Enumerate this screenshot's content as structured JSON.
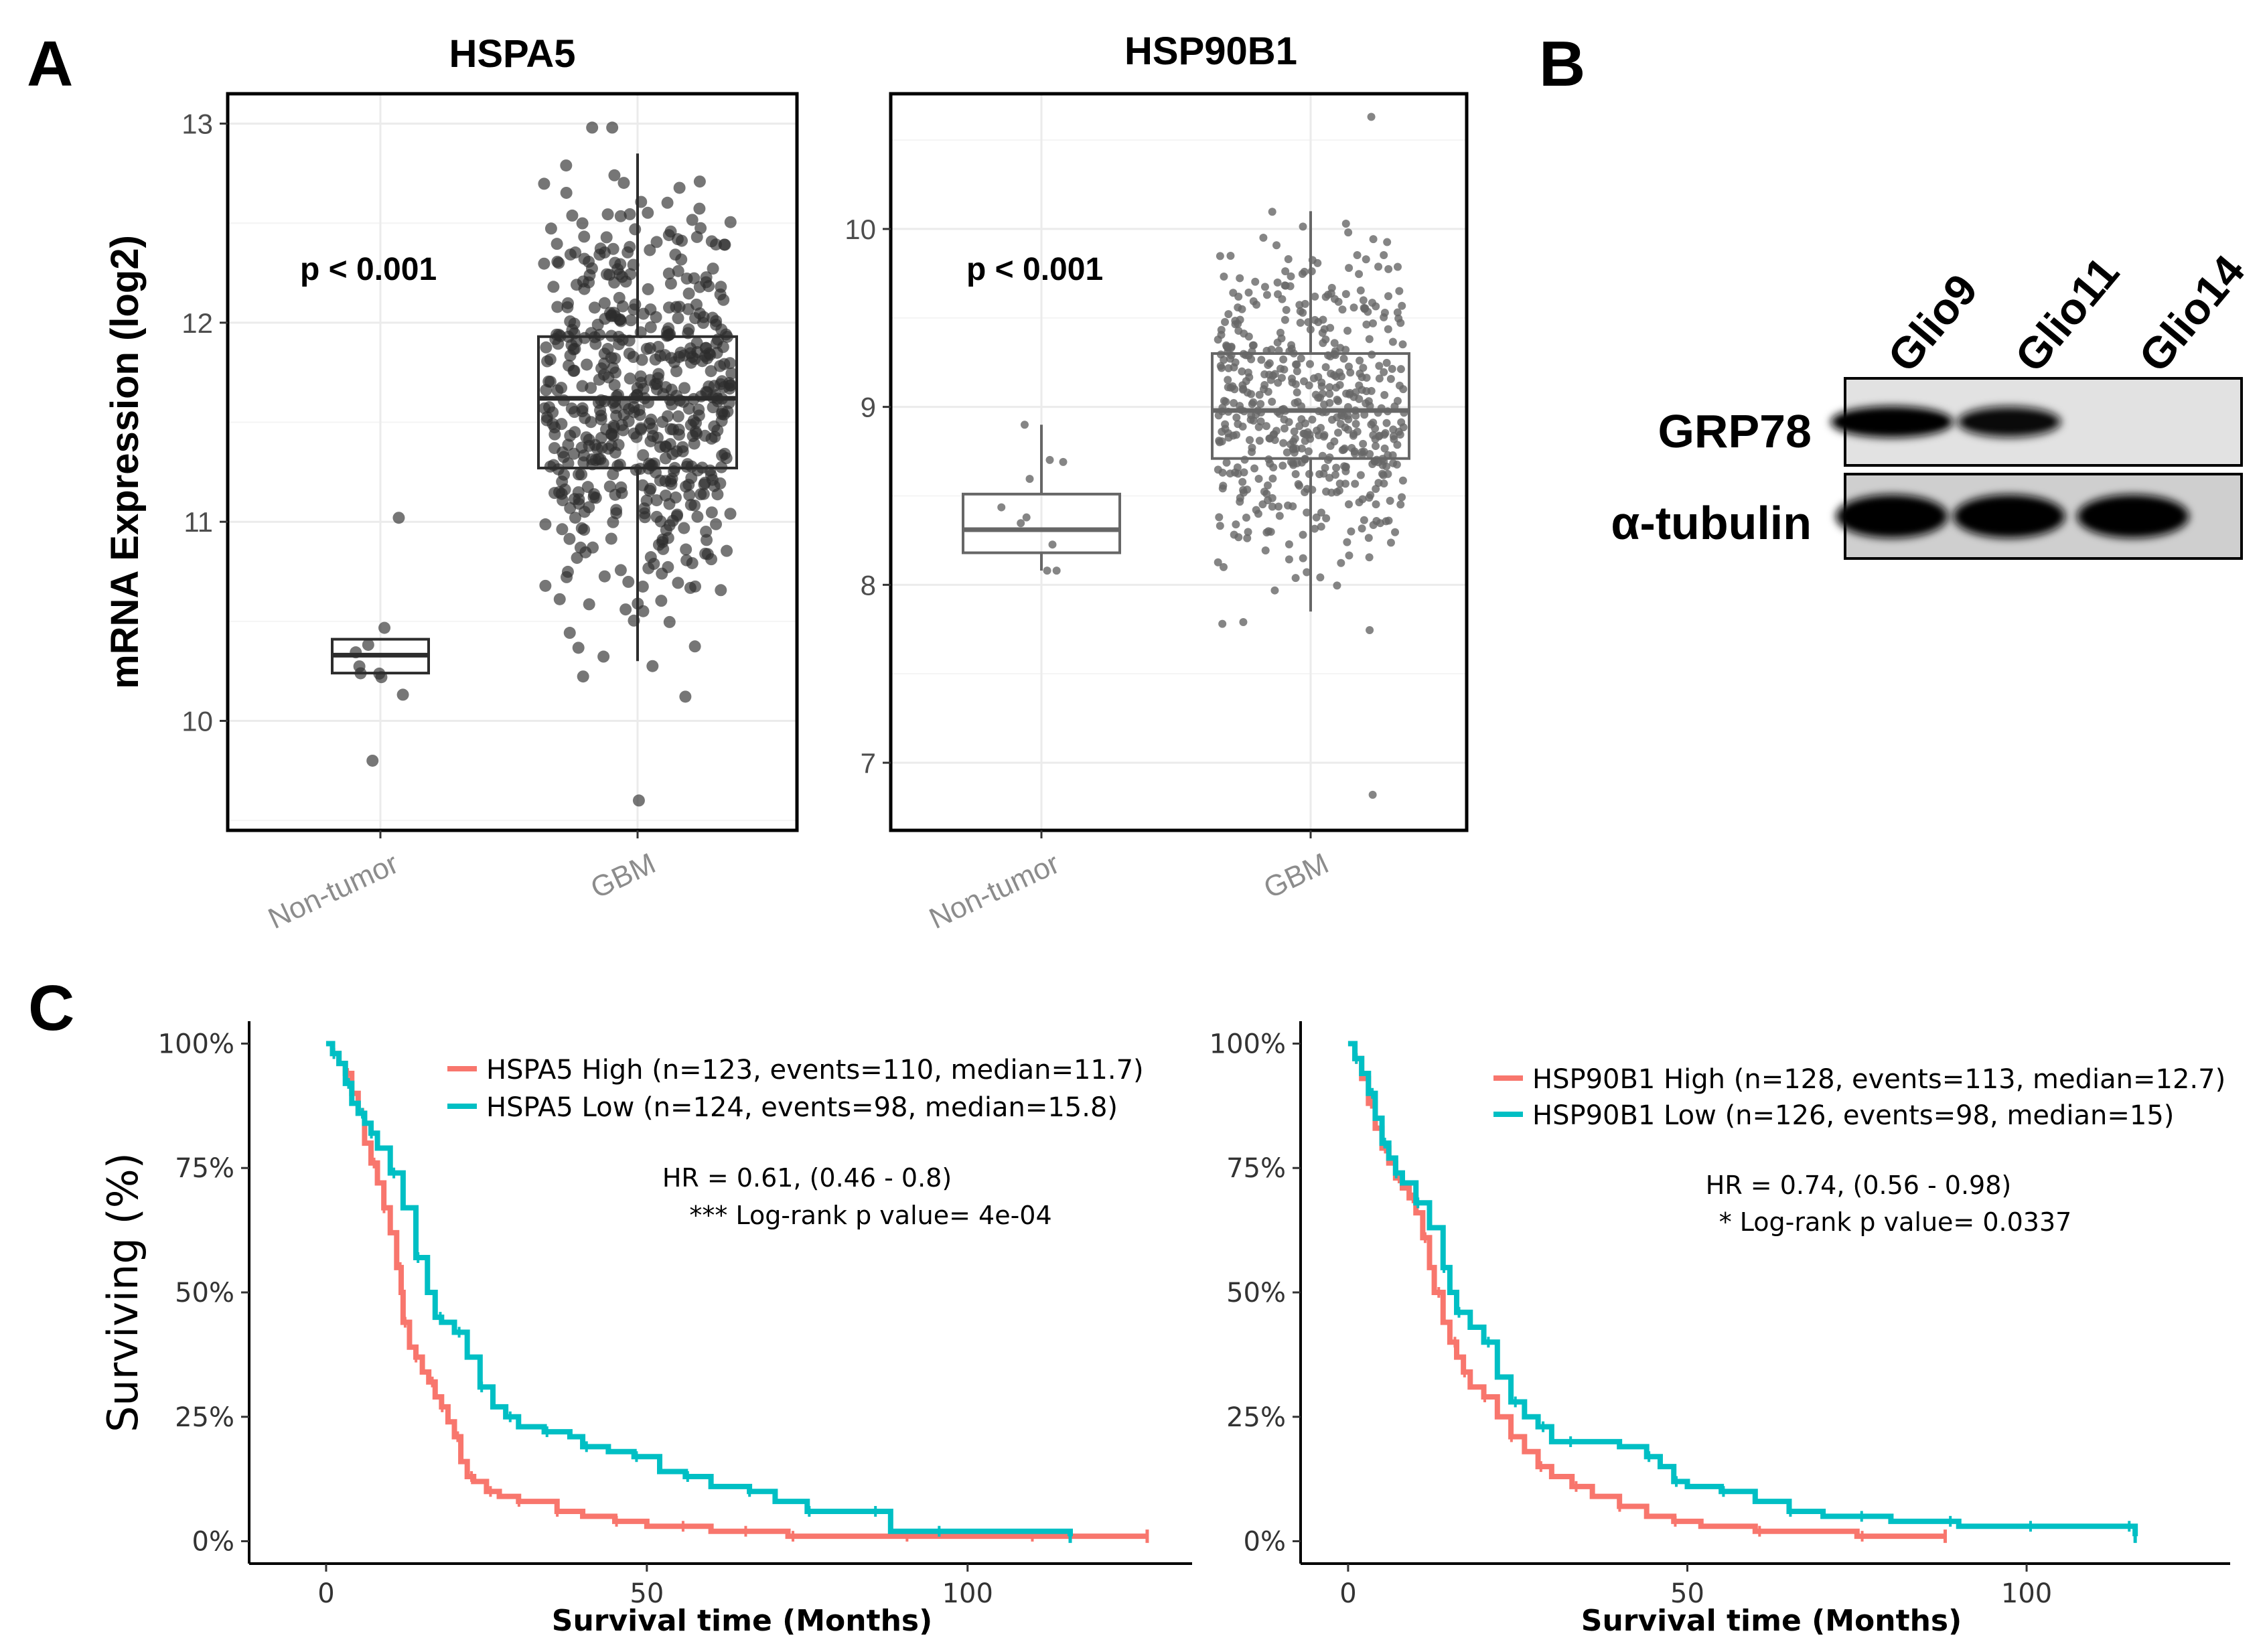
{
  "panel_labels": {
    "a": "A",
    "b": "B",
    "c": "C"
  },
  "chart_data": [
    {
      "type": "box",
      "id": "hspa5_box",
      "title": "HSPA5",
      "xlabel": "",
      "ylabel": "mRNA Expression (log2)",
      "categories": [
        "Non-tumor",
        "GBM"
      ],
      "ylim": [
        9.45,
        13.15
      ],
      "yticks": [
        10,
        11,
        12,
        13
      ],
      "ytick_labels": [
        "10",
        "11",
        "12",
        "13"
      ],
      "annotation": "p < 0.001",
      "boxes": [
        {
          "category": "Non-tumor",
          "q1": 10.24,
          "median": 10.33,
          "q3": 10.41,
          "whisker_low": 10.24,
          "whisker_high": 10.41,
          "n": 10,
          "range": [
            9.8,
            11.02
          ]
        },
        {
          "category": "GBM",
          "q1": 11.27,
          "median": 11.62,
          "q3": 11.93,
          "whisker_low": 10.3,
          "whisker_high": 12.85,
          "n": 540,
          "range": [
            9.6,
            12.98
          ]
        }
      ]
    },
    {
      "type": "box",
      "id": "hsp90b1_box",
      "title": "HSP90B1",
      "xlabel": "",
      "ylabel": "",
      "categories": [
        "Non-tumor",
        "GBM"
      ],
      "ylim": [
        6.62,
        10.76
      ],
      "yticks": [
        7,
        8,
        9,
        10
      ],
      "ytick_labels": [
        "7",
        "8",
        "9",
        "10"
      ],
      "annotation": "p < 0.001",
      "boxes": [
        {
          "category": "Non-tumor",
          "q1": 8.18,
          "median": 8.31,
          "q3": 8.51,
          "whisker_low": 8.08,
          "whisker_high": 8.9,
          "n": 10,
          "range": [
            8.08,
            8.9
          ]
        },
        {
          "category": "GBM",
          "q1": 8.71,
          "median": 8.98,
          "q3": 9.3,
          "whisker_low": 7.85,
          "whisker_high": 10.1,
          "n": 540,
          "range": [
            6.82,
            10.63
          ]
        }
      ]
    },
    {
      "type": "line",
      "id": "hspa5_km",
      "title": "",
      "xlabel": "Survival time (Months)",
      "ylabel": "Surviving (%)",
      "xlim": [
        -12,
        135
      ],
      "ylim": [
        -4.5,
        104.5
      ],
      "xticks": [
        0,
        50,
        100
      ],
      "xtick_labels": [
        "0",
        "50",
        "100"
      ],
      "yticks": [
        0,
        25,
        50,
        75,
        100
      ],
      "ytick_labels": [
        "0%",
        "25%",
        "50%",
        "75%",
        "100%"
      ],
      "hr_text": "HR = 0.61, (0.46 - 0.8)",
      "pvalue_text": "*** Log-rank p value= 4e-04",
      "legend_position": "top-right",
      "series": [
        {
          "name": "HSPA5 High (n=123, events=110, median=11.7)",
          "color": "#F8766D",
          "x": [
            0,
            1,
            2,
            3,
            4,
            5,
            6,
            7,
            8,
            9,
            10,
            11,
            11.7,
            12,
            13,
            14,
            15,
            16,
            17,
            18,
            19,
            20,
            21,
            22,
            23,
            25,
            27,
            30,
            33,
            36,
            40,
            45,
            50,
            55,
            60,
            65,
            70,
            72,
            80,
            90,
            100,
            110,
            120,
            128
          ],
          "y": [
            100,
            98,
            96,
            94,
            90,
            86,
            80,
            76,
            72,
            67,
            62,
            55,
            50,
            44,
            39,
            37,
            34,
            32,
            29,
            27,
            24,
            21,
            16,
            13,
            12,
            10,
            9,
            8,
            8,
            6,
            5,
            4,
            3,
            3,
            2,
            2,
            2,
            1,
            1,
            1,
            1,
            1,
            1,
            1
          ]
        },
        {
          "name": "HSPA5 Low (n=124, events=98, median=15.8)",
          "color": "#00BFC4",
          "x": [
            0,
            1,
            2,
            3,
            4,
            5,
            6,
            7,
            8,
            10,
            12,
            14,
            15.8,
            17,
            18,
            20,
            22,
            24,
            26,
            28,
            30,
            34,
            38,
            40,
            44,
            48,
            52,
            56,
            60,
            66,
            70,
            75,
            80,
            85,
            88,
            95,
            105,
            116
          ],
          "y": [
            100,
            98,
            96,
            92,
            88,
            86,
            84,
            82,
            79,
            74,
            67,
            57,
            50,
            45,
            44,
            42,
            37,
            31,
            27,
            25,
            23,
            22,
            21,
            19,
            18,
            17,
            14,
            13,
            11,
            10,
            8,
            6,
            6,
            6,
            2,
            2,
            2,
            1
          ]
        }
      ]
    },
    {
      "type": "line",
      "id": "hsp90b1_km",
      "title": "",
      "xlabel": "Survival time (Months)",
      "ylabel": "",
      "xlim": [
        -7,
        130
      ],
      "ylim": [
        -4.5,
        104.5
      ],
      "xticks": [
        0,
        50,
        100
      ],
      "xtick_labels": [
        "0",
        "50",
        "100"
      ],
      "yticks": [
        0,
        25,
        50,
        75,
        100
      ],
      "ytick_labels": [
        "0%",
        "25%",
        "50%",
        "75%",
        "100%"
      ],
      "hr_text": "HR = 0.74, (0.56 - 0.98)",
      "pvalue_text": "* Log-rank p value= 0.0337",
      "legend_position": "top-right",
      "series": [
        {
          "name": "HSP90B1 High (n=128, events=113, median=12.7)",
          "color": "#F8766D",
          "x": [
            0,
            1,
            2,
            3,
            4,
            5,
            6,
            7,
            8,
            9,
            10,
            11,
            12,
            12.7,
            14,
            15,
            16,
            17,
            18,
            20,
            22,
            24,
            26,
            28,
            30,
            33,
            36,
            40,
            44,
            48,
            52,
            60,
            70,
            75,
            80,
            88
          ],
          "y": [
            100,
            97,
            93,
            88,
            83,
            79,
            76,
            73,
            71,
            69,
            66,
            61,
            55,
            50,
            44,
            40,
            37,
            34,
            31,
            29,
            25,
            21,
            18,
            15,
            13,
            11,
            9,
            7,
            5,
            4,
            3,
            2,
            2,
            1,
            1,
            1
          ]
        },
        {
          "name": "HSP90B1 Low (n=126, events=98, median=15)",
          "color": "#00BFC4",
          "x": [
            0,
            1,
            2,
            3,
            4,
            5,
            6,
            7,
            8,
            10,
            12,
            14,
            15,
            16,
            18,
            20,
            22,
            24,
            26,
            28,
            30,
            32,
            40,
            44,
            46,
            48,
            50,
            55,
            60,
            65,
            70,
            75,
            80,
            88,
            90,
            100,
            110,
            115,
            116
          ],
          "y": [
            100,
            97,
            94,
            90,
            85,
            80,
            77,
            74,
            72,
            68,
            63,
            55,
            50,
            46,
            43,
            40,
            33,
            28,
            25,
            23,
            20,
            20,
            19,
            17,
            15,
            12,
            11,
            10,
            8,
            6,
            5,
            5,
            4,
            4,
            3,
            3,
            3,
            3,
            1
          ]
        }
      ]
    }
  ],
  "western_blot": {
    "lanes": [
      "Glio9",
      "Glio11",
      "Glio14"
    ],
    "rows": [
      {
        "label": "GRP78",
        "intensity": [
          1.0,
          0.75,
          0.0
        ]
      },
      {
        "label": "α-tubulin",
        "intensity": [
          1.0,
          1.0,
          1.0
        ]
      }
    ]
  }
}
